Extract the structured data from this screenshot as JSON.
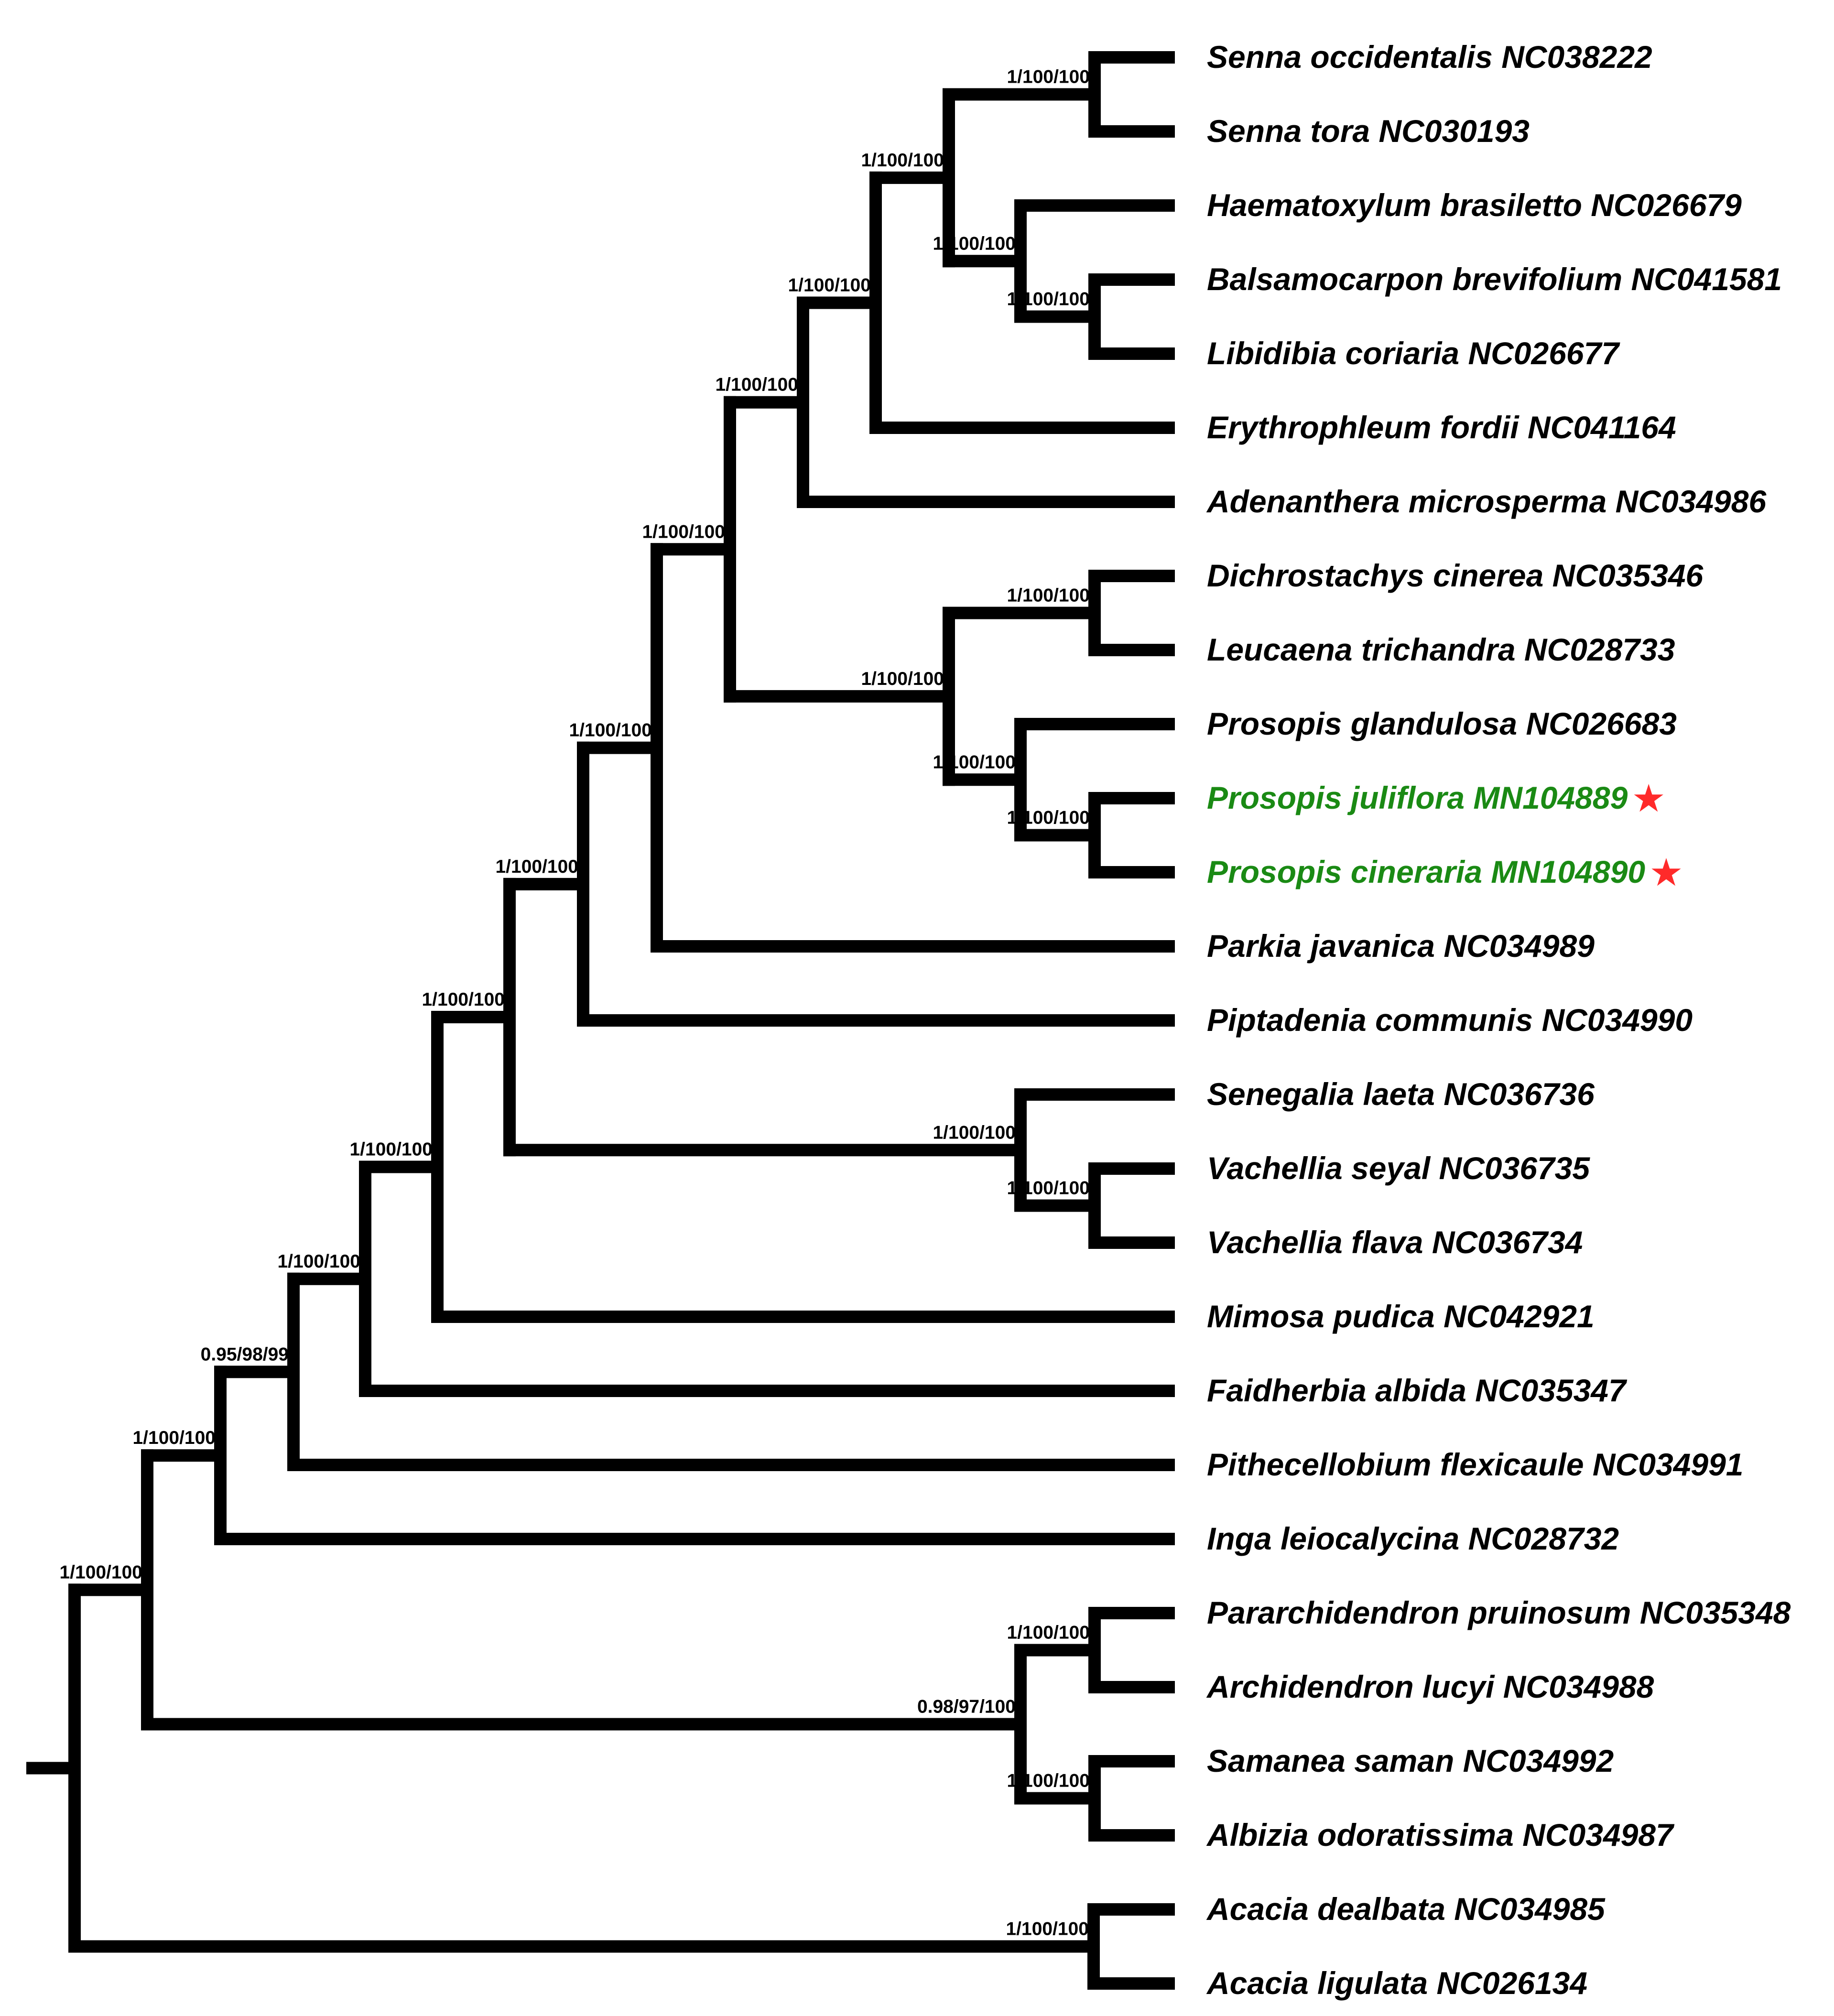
{
  "colors": {
    "branch": "#000000",
    "label": "#000000",
    "highlight_label": "#1a8a14",
    "star": "#ff2a2a"
  },
  "highlight_icon": "star-icon",
  "taxa": [
    {
      "label": "Senna occidentalis NC038222",
      "highlight": false
    },
    {
      "label": "Senna tora NC030193",
      "highlight": false
    },
    {
      "label": "Haematoxylum brasiletto NC026679",
      "highlight": false
    },
    {
      "label": "Balsamocarpon brevifolium NC041581",
      "highlight": false
    },
    {
      "label": "Libidibia coriaria NC026677",
      "highlight": false
    },
    {
      "label": "Erythrophleum fordii NC041164",
      "highlight": false
    },
    {
      "label": "Adenanthera microsperma NC034986",
      "highlight": false
    },
    {
      "label": "Dichrostachys cinerea NC035346",
      "highlight": false
    },
    {
      "label": "Leucaena trichandra NC028733",
      "highlight": false
    },
    {
      "label": "Prosopis glandulosa NC026683",
      "highlight": false
    },
    {
      "label": "Prosopis juliflora MN104889",
      "highlight": true
    },
    {
      "label": "Prosopis cineraria MN104890",
      "highlight": true
    },
    {
      "label": "Parkia javanica NC034989",
      "highlight": false
    },
    {
      "label": "Piptadenia communis NC034990",
      "highlight": false
    },
    {
      "label": "Senegalia laeta NC036736",
      "highlight": false
    },
    {
      "label": "Vachellia seyal NC036735",
      "highlight": false
    },
    {
      "label": "Vachellia flava NC036734",
      "highlight": false
    },
    {
      "label": "Mimosa pudica NC042921",
      "highlight": false
    },
    {
      "label": "Faidherbia albida NC035347",
      "highlight": false
    },
    {
      "label": "Pithecellobium flexicaule NC034991",
      "highlight": false
    },
    {
      "label": "Inga leiocalycina NC028732",
      "highlight": false
    },
    {
      "label": "Pararchidendron pruinosum NC035348",
      "highlight": false
    },
    {
      "label": "Archidendron lucyi NC034988",
      "highlight": false
    },
    {
      "label": "Samanea saman NC034992",
      "highlight": false
    },
    {
      "label": "Albizia odoratissima NC034987",
      "highlight": false
    },
    {
      "label": "Acacia dealbata NC034985",
      "highlight": false
    },
    {
      "label": "Acacia ligulata NC026134",
      "highlight": false
    }
  ],
  "tree": {
    "root": "root",
    "nodes": {
      "root": {
        "support": "",
        "children": [
          "n_main",
          "n_acacia"
        ]
      },
      "n_acacia": {
        "support": "1/100/100",
        "children": [
          25,
          26
        ]
      },
      "n_main": {
        "support": "1/100/100",
        "children": [
          "n_a",
          "n_ing"
        ]
      },
      "n_ing": {
        "support": "0.98/97/100",
        "children": [
          "n_ing1",
          "n_ing2"
        ]
      },
      "n_ing1": {
        "support": "1/100/100",
        "children": [
          21,
          22
        ]
      },
      "n_ing2": {
        "support": "1/100/100",
        "children": [
          23,
          24
        ]
      },
      "n_a": {
        "support": "1/100/100",
        "children": [
          "n_b",
          20
        ]
      },
      "n_b": {
        "support": "0.95/98/99",
        "children": [
          "n_c",
          19
        ]
      },
      "n_c": {
        "support": "1/100/100",
        "children": [
          "n_d",
          18
        ]
      },
      "n_d": {
        "support": "1/100/100",
        "children": [
          "n_e",
          17
        ]
      },
      "n_e": {
        "support": "1/100/100",
        "children": [
          "n_f",
          "n_acac"
        ]
      },
      "n_acac": {
        "support": "1/100/100",
        "children": [
          14,
          "n_vach"
        ]
      },
      "n_vach": {
        "support": "1/100/100",
        "children": [
          15,
          16
        ]
      },
      "n_f": {
        "support": "1/100/100",
        "children": [
          "n_g",
          13
        ]
      },
      "n_g": {
        "support": "1/100/100",
        "children": [
          "n_h",
          12
        ]
      },
      "n_h": {
        "support": "1/100/100",
        "children": [
          "n_i",
          "n_mim"
        ]
      },
      "n_mim": {
        "support": "1/100/100",
        "children": [
          "n_dl",
          "n_pros"
        ]
      },
      "n_dl": {
        "support": "1/100/100",
        "children": [
          7,
          8
        ]
      },
      "n_pros": {
        "support": "1/100/100",
        "children": [
          9,
          "n_pj"
        ]
      },
      "n_pj": {
        "support": "1/100/100",
        "children": [
          10,
          11
        ]
      },
      "n_i": {
        "support": "1/100/100",
        "children": [
          "n_j",
          6
        ]
      },
      "n_j": {
        "support": "1/100/100",
        "children": [
          "n_k",
          5
        ]
      },
      "n_k": {
        "support": "1/100/100",
        "children": [
          "n_senna",
          "n_haem"
        ]
      },
      "n_senna": {
        "support": "1/100/100",
        "children": [
          0,
          1
        ]
      },
      "n_haem": {
        "support": "1/100/100",
        "children": [
          2,
          "n_bl"
        ]
      },
      "n_bl": {
        "support": "1/100/100",
        "children": [
          3,
          4
        ]
      }
    }
  }
}
